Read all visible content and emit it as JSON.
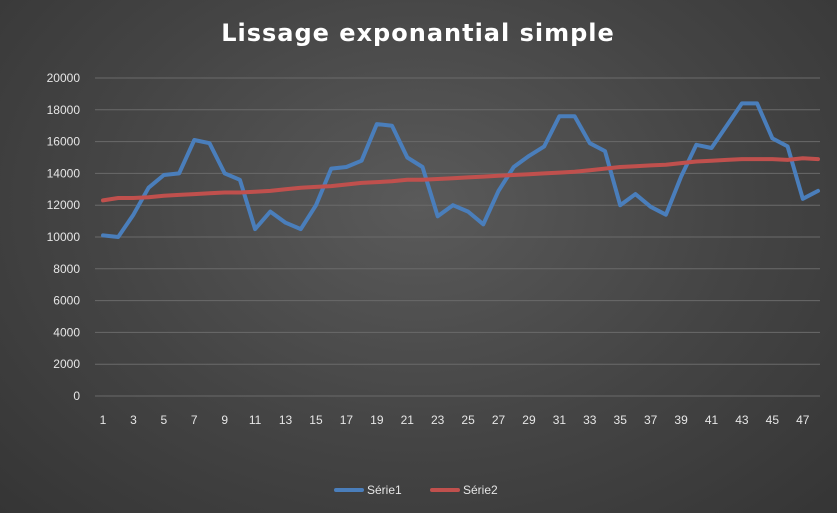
{
  "chart_data": {
    "type": "line",
    "title": "Lissage exponantial simple",
    "xlabel": "",
    "ylabel": "",
    "ylim": [
      0,
      20000
    ],
    "yticks": [
      0,
      2000,
      4000,
      6000,
      8000,
      10000,
      12000,
      14000,
      16000,
      18000,
      20000
    ],
    "x": [
      1,
      2,
      3,
      4,
      5,
      6,
      7,
      8,
      9,
      10,
      11,
      12,
      13,
      14,
      15,
      16,
      17,
      18,
      19,
      20,
      21,
      22,
      23,
      24,
      25,
      26,
      27,
      28,
      29,
      30,
      31,
      32,
      33,
      34,
      35,
      36,
      37,
      38,
      39,
      40,
      41,
      42,
      43,
      44,
      45,
      46,
      47,
      48
    ],
    "xtick_labels": [
      "1",
      "3",
      "5",
      "7",
      "9",
      "11",
      "13",
      "15",
      "17",
      "19",
      "21",
      "23",
      "25",
      "27",
      "29",
      "31",
      "33",
      "35",
      "37",
      "39",
      "41",
      "43",
      "45",
      "47"
    ],
    "grid": true,
    "legend_position": "bottom",
    "series": [
      {
        "name": "Série1",
        "color": "#4a7ebb",
        "values": [
          10100,
          10000,
          11400,
          13100,
          13900,
          14000,
          16100,
          15900,
          14000,
          13600,
          10500,
          11600,
          10900,
          10500,
          12000,
          14300,
          14400,
          14800,
          17100,
          17000,
          15000,
          14400,
          11300,
          12000,
          11600,
          10800,
          12900,
          14400,
          15100,
          15700,
          17600,
          17600,
          15900,
          15400,
          12000,
          12700,
          11900,
          11400,
          13800,
          15800,
          15600,
          17000,
          18400,
          18400,
          16200,
          15700,
          12400,
          12900
        ]
      },
      {
        "name": "Série2",
        "color": "#c0504d",
        "values": [
          12300,
          12450,
          12450,
          12500,
          12600,
          12650,
          12700,
          12750,
          12800,
          12800,
          12850,
          12900,
          13000,
          13100,
          13150,
          13200,
          13300,
          13400,
          13450,
          13500,
          13600,
          13600,
          13650,
          13700,
          13750,
          13800,
          13850,
          13900,
          13950,
          14000,
          14050,
          14100,
          14200,
          14300,
          14400,
          14450,
          14500,
          14550,
          14650,
          14750,
          14800,
          14850,
          14900,
          14900,
          14900,
          14850,
          14950,
          14900
        ]
      }
    ]
  }
}
